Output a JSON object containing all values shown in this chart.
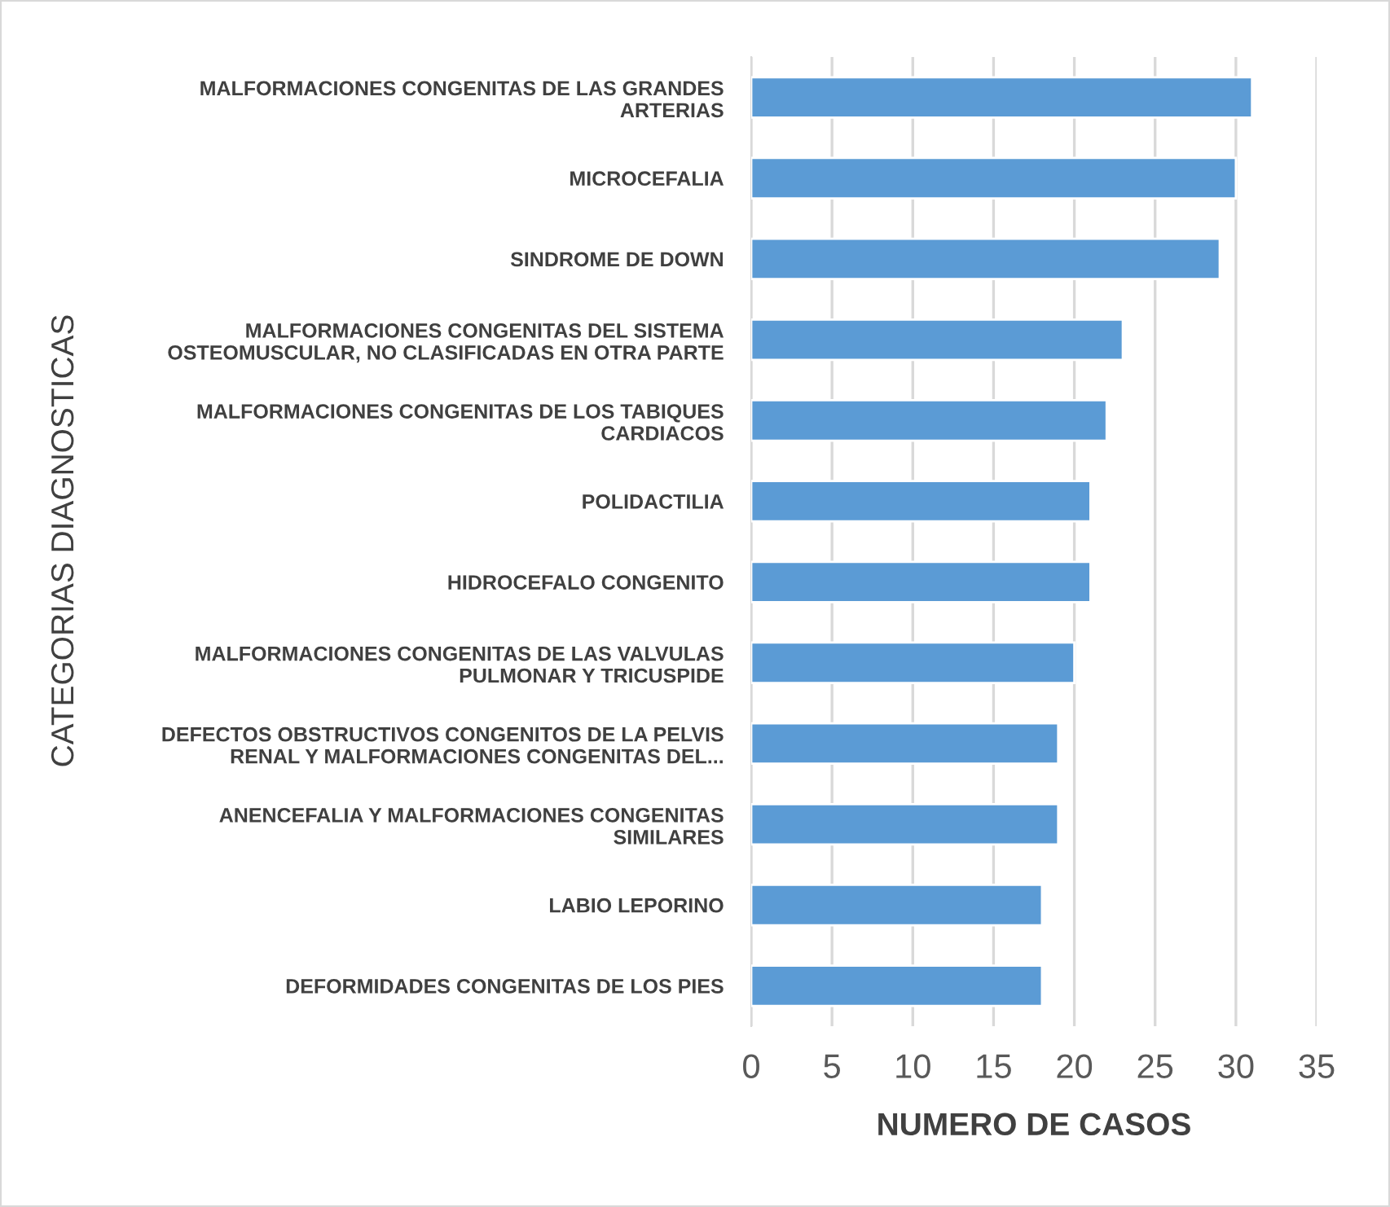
{
  "chart_data": {
    "type": "bar",
    "orientation": "horizontal",
    "categories": [
      "MALFORMACIONES CONGENITAS DE LAS GRANDES\nARTERIAS",
      "MICROCEFALIA",
      "SINDROME DE DOWN",
      "MALFORMACIONES CONGENITAS DEL SISTEMA\nOSTEOMUSCULAR, NO CLASIFICADAS EN OTRA PARTE",
      "MALFORMACIONES CONGENITAS DE LOS TABIQUES\nCARDIACOS",
      "POLIDACTILIA",
      "HIDROCEFALO CONGENITO",
      "MALFORMACIONES CONGENITAS DE LAS VALVULAS\nPULMONAR Y TRICUSPIDE",
      "DEFECTOS OBSTRUCTIVOS CONGENITOS DE LA PELVIS\nRENAL Y MALFORMACIONES CONGENITAS DEL...",
      "ANENCEFALIA Y MALFORMACIONES CONGENITAS\nSIMILARES",
      "LABIO LEPORINO",
      "DEFORMIDADES CONGENITAS DE LOS PIES"
    ],
    "values": [
      31,
      30,
      29,
      23,
      22,
      21,
      21,
      20,
      19,
      19,
      18,
      18
    ],
    "color": "#5b9bd5",
    "xlim": [
      0,
      35
    ],
    "xticks": [
      0,
      5,
      10,
      15,
      20,
      25,
      30,
      35
    ],
    "xlabel": "NUMERO DE CASOS",
    "ylabel": "CATEGORIAS DIAGNOSTICAS",
    "grid": "x"
  }
}
